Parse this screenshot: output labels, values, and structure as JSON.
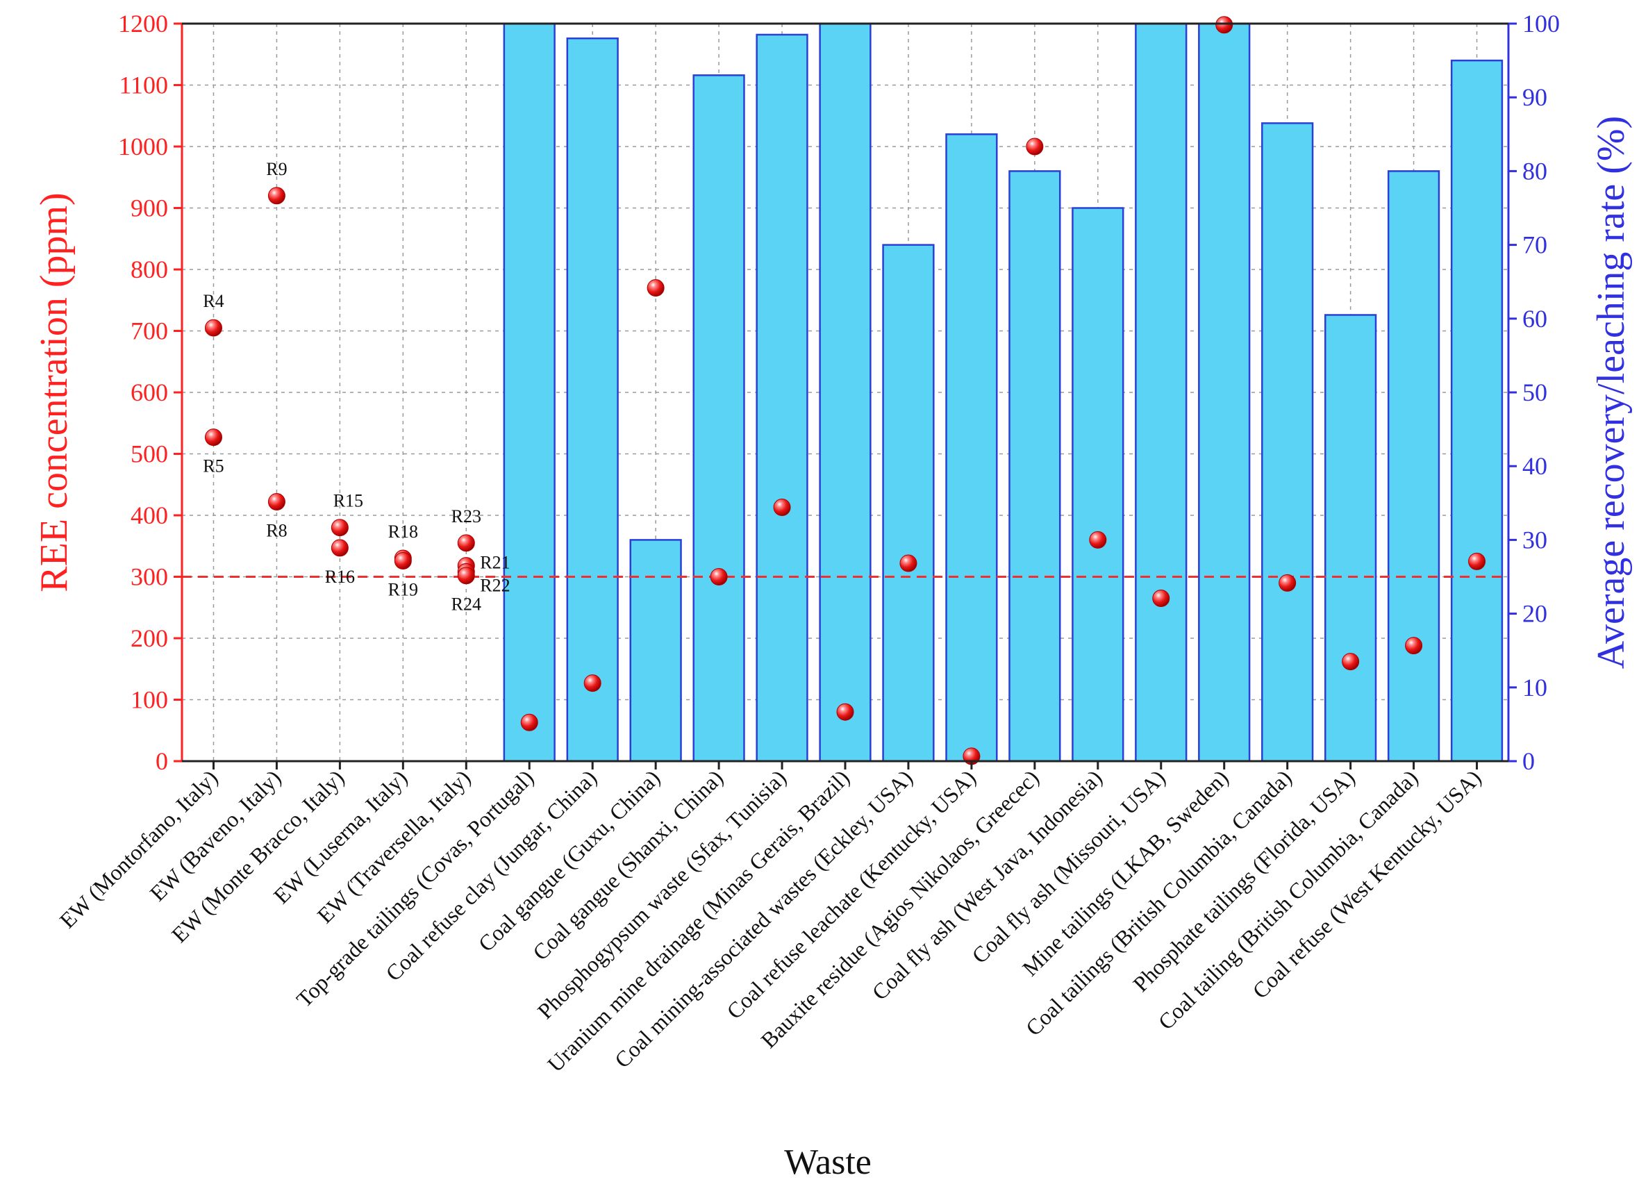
{
  "chart_data": {
    "type": "bar",
    "title": "",
    "xlabel": "Waste",
    "ylabel_left": "REE concentration (ppm)",
    "ylabel_right": "Average recovery/leaching rate (%)",
    "ylim_left": [
      0,
      1200
    ],
    "ylim_right": [
      0,
      100
    ],
    "yticks_left": [
      0,
      100,
      200,
      300,
      400,
      500,
      600,
      700,
      800,
      900,
      1000,
      1100,
      1200
    ],
    "yticks_right": [
      0,
      10,
      20,
      30,
      40,
      50,
      60,
      70,
      80,
      90,
      100
    ],
    "grid": true,
    "reference_line": {
      "value": 300,
      "axis": "left",
      "style": "dashed"
    },
    "colors": {
      "left_axis": "#ff2020",
      "right_axis": "#3030e0",
      "bar_fill": "#5bd3f5",
      "bar_edge": "#2a3fd6",
      "point": "#e81616"
    },
    "categories": [
      "EW (Montorfano, Italy)",
      "EW (Baveno, Italy)",
      "EW (Monte Bracco, Italy)",
      "EW (Luserna, Italy)",
      "EW (Traversella, Italy)",
      "Top-grade tailings (Covas, Portugal)",
      "Coal refuse clay (Jungar, China)",
      "Coal gangue (Guxu, China)",
      "Coal gangue (Shanxi, China)",
      "Phosphogypsum waste (Sfax, Tunisia)",
      "Uranium mine drainage (Minas Gerais, Brazil)",
      "Coal mining-associated wastes (Eckley, USA)",
      "Coal refuse leachate (Kentucky, USA)",
      "Bauxite residue (Agios Nikolaos, Greecec)",
      "Coal fly ash (West Java, Indonesia)",
      "Coal fly ash (Missouri, USA)",
      "Mine tailings (LKAB, Sweden)",
      "Coal tailings (British Columbia, Canada)",
      "Phosphate tailings (Florida,  USA)",
      "Coal tailing (British Columbia, Canada)",
      "Coal  refuse (West Kentucky, USA)"
    ],
    "series": [
      {
        "name": "Average recovery/leaching rate (%)",
        "axis": "right",
        "type": "bar",
        "values": [
          null,
          null,
          null,
          null,
          null,
          100,
          98,
          30,
          93,
          98.5,
          100,
          70,
          85,
          80,
          75,
          100,
          100,
          86.5,
          60.5,
          80,
          95
        ]
      },
      {
        "name": "REE concentration (ppm)",
        "axis": "left",
        "type": "scatter",
        "points": [
          {
            "cat": 0,
            "value": 705,
            "label": "R4",
            "label_pos": "above"
          },
          {
            "cat": 0,
            "value": 527,
            "label": "R5",
            "label_pos": "below"
          },
          {
            "cat": 1,
            "value": 920,
            "label": "R9",
            "label_pos": "above"
          },
          {
            "cat": 1,
            "value": 422,
            "label": "R8",
            "label_pos": "below"
          },
          {
            "cat": 2,
            "value": 380,
            "label": "R15",
            "label_pos": "above-right"
          },
          {
            "cat": 2,
            "value": 347,
            "label": "R16",
            "label_pos": "below"
          },
          {
            "cat": 3,
            "value": 330,
            "label": "R18",
            "label_pos": "above"
          },
          {
            "cat": 3,
            "value": 326,
            "label": "R19",
            "label_pos": "below"
          },
          {
            "cat": 4,
            "value": 355,
            "label": "R23",
            "label_pos": "above"
          },
          {
            "cat": 4,
            "value": 318,
            "label": "R21",
            "label_pos": "right-up"
          },
          {
            "cat": 4,
            "value": 308,
            "label": "R22",
            "label_pos": "right"
          },
          {
            "cat": 4,
            "value": 302,
            "label": "R24",
            "label_pos": "below"
          },
          {
            "cat": 5,
            "value": 63,
            "label": ""
          },
          {
            "cat": 6,
            "value": 127,
            "label": ""
          },
          {
            "cat": 7,
            "value": 770,
            "label": ""
          },
          {
            "cat": 8,
            "value": 300,
            "label": ""
          },
          {
            "cat": 9,
            "value": 413,
            "label": ""
          },
          {
            "cat": 10,
            "value": 80,
            "label": ""
          },
          {
            "cat": 11,
            "value": 322,
            "label": ""
          },
          {
            "cat": 12,
            "value": 8,
            "label": ""
          },
          {
            "cat": 13,
            "value": 1000,
            "label": ""
          },
          {
            "cat": 14,
            "value": 360,
            "label": ""
          },
          {
            "cat": 15,
            "value": 265,
            "label": ""
          },
          {
            "cat": 16,
            "value": 1198,
            "label": ""
          },
          {
            "cat": 17,
            "value": 290,
            "label": ""
          },
          {
            "cat": 18,
            "value": 162,
            "label": ""
          },
          {
            "cat": 19,
            "value": 188,
            "label": ""
          },
          {
            "cat": 20,
            "value": 325,
            "label": ""
          }
        ]
      }
    ]
  }
}
